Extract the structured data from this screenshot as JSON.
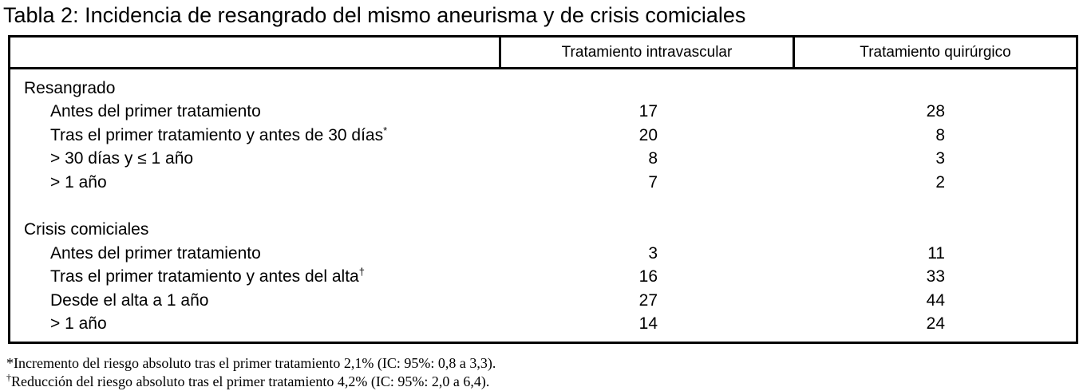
{
  "page": {
    "title": "Tabla 2: Incidencia de resangrado del mismo aneurisma y de crisis comiciales"
  },
  "table": {
    "columns": {
      "intravascular": "Tratamiento intravascular",
      "quirurgico": "Tratamiento quirúrgico"
    },
    "sections": [
      {
        "title": "Resangrado",
        "rows": [
          {
            "label": "Antes del primer tratamiento",
            "marker": "",
            "intravascular": "17",
            "quirurgico": "28"
          },
          {
            "label": "Tras el primer tratamiento y antes de 30 días",
            "marker": "*",
            "intravascular": "20",
            "quirurgico": "8"
          },
          {
            "label": "> 30 días y ≤ 1 año",
            "marker": "",
            "intravascular": "8",
            "quirurgico": "3"
          },
          {
            "label": "> 1 año",
            "marker": "",
            "intravascular": "7",
            "quirurgico": "2"
          }
        ]
      },
      {
        "title": "Crisis comiciales",
        "rows": [
          {
            "label": "Antes del primer tratamiento",
            "marker": "",
            "intravascular": "3",
            "quirurgico": "11"
          },
          {
            "label": "Tras el primer tratamiento y antes del alta",
            "marker": "†",
            "intravascular": "16",
            "quirurgico": "33"
          },
          {
            "label": "Desde el alta a 1 año",
            "marker": "",
            "intravascular": "27",
            "quirurgico": "44"
          },
          {
            "label": "> 1 año",
            "marker": "",
            "intravascular": "14",
            "quirurgico": "24"
          }
        ]
      }
    ]
  },
  "footnotes": [
    {
      "marker": "*",
      "text": "Incremento del riesgo absoluto tras el primer tratamiento 2,1% (IC: 95%: 0,8 a 3,3)."
    },
    {
      "marker": "†",
      "text": "Reducción del riesgo absoluto tras el primer tratamiento 4,2% (IC: 95%: 2,0 a 6,4)."
    }
  ],
  "colors": {
    "text": "#000000",
    "border": "#000000",
    "background": "#ffffff"
  }
}
